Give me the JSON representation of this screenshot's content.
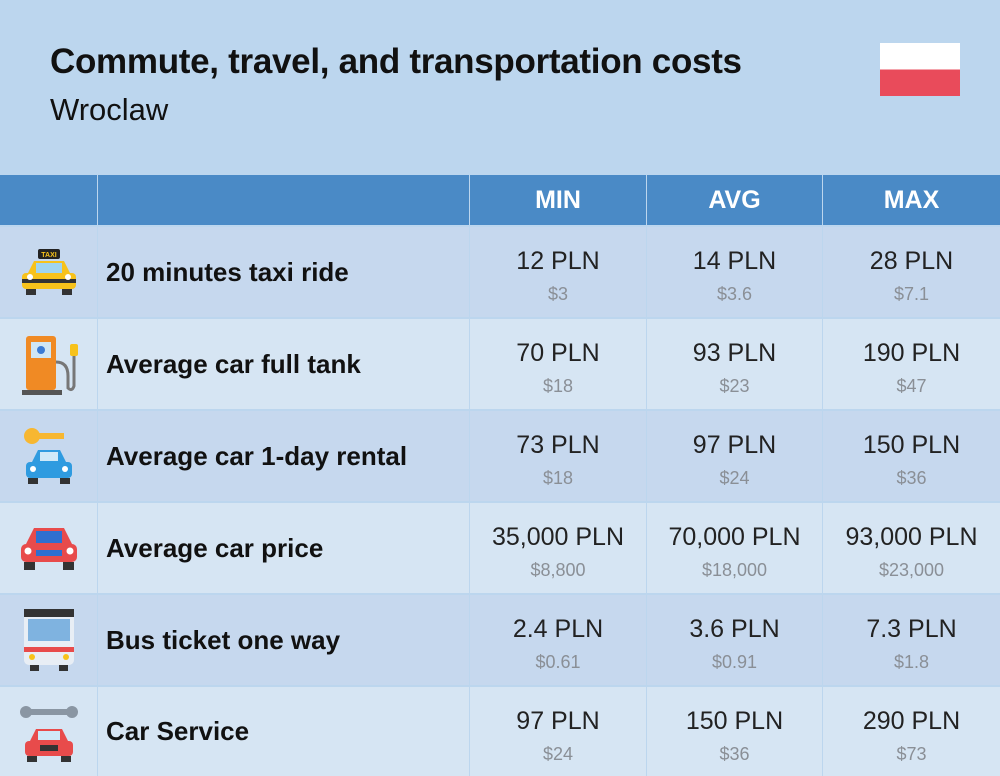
{
  "header": {
    "title": "Commute, travel, and transportation costs",
    "subtitle": "Wroclaw"
  },
  "table": {
    "columns": [
      "MIN",
      "AVG",
      "MAX"
    ],
    "rows": [
      {
        "label": "20 minutes taxi ride",
        "icon_label": "TAXI",
        "cells": [
          {
            "main": "12 PLN",
            "sub": "$3"
          },
          {
            "main": "14 PLN",
            "sub": "$3.6"
          },
          {
            "main": "28 PLN",
            "sub": "$7.1"
          }
        ]
      },
      {
        "label": "Average car full tank",
        "cells": [
          {
            "main": "70 PLN",
            "sub": "$18"
          },
          {
            "main": "93 PLN",
            "sub": "$23"
          },
          {
            "main": "190 PLN",
            "sub": "$47"
          }
        ]
      },
      {
        "label": "Average car 1-day rental",
        "cells": [
          {
            "main": "73 PLN",
            "sub": "$18"
          },
          {
            "main": "97 PLN",
            "sub": "$24"
          },
          {
            "main": "150 PLN",
            "sub": "$36"
          }
        ]
      },
      {
        "label": "Average car price",
        "cells": [
          {
            "main": "35,000 PLN",
            "sub": "$8,800"
          },
          {
            "main": "70,000 PLN",
            "sub": "$18,000"
          },
          {
            "main": "93,000 PLN",
            "sub": "$23,000"
          }
        ]
      },
      {
        "label": "Bus ticket one way",
        "cells": [
          {
            "main": "2.4 PLN",
            "sub": "$0.61"
          },
          {
            "main": "3.6 PLN",
            "sub": "$0.91"
          },
          {
            "main": "7.3 PLN",
            "sub": "$1.8"
          }
        ]
      },
      {
        "label": "Car Service",
        "cells": [
          {
            "main": "97 PLN",
            "sub": "$24"
          },
          {
            "main": "150 PLN",
            "sub": "$36"
          },
          {
            "main": "290 PLN",
            "sub": "$73"
          }
        ]
      }
    ]
  }
}
